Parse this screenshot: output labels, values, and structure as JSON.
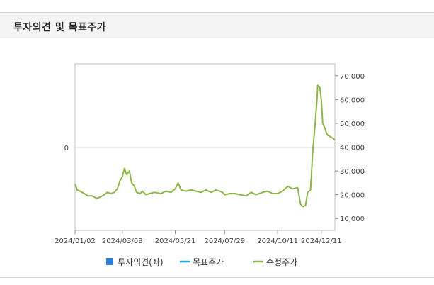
{
  "header": {
    "title": "투자의견 및 목표주가"
  },
  "chart_data": {
    "type": "line",
    "left_axis": {
      "ticks": [
        "0"
      ]
    },
    "right_axis": {
      "ticks": [
        "10,000",
        "20,000",
        "30,000",
        "40,000",
        "50,000",
        "60,000",
        "70,000"
      ],
      "ylim": [
        5000,
        75000
      ]
    },
    "x_ticks": [
      "2024/01/02",
      "2024/03/08",
      "2024/05/21",
      "2024/07/29",
      "2024/10/11",
      "2024/12/11"
    ],
    "x_tick_dates": [
      "2024-01-02",
      "2024-03-08",
      "2024-05-21",
      "2024-07-29",
      "2024-10-11",
      "2024-12-11"
    ],
    "xlim": [
      "2024-01-02",
      "2024-12-30"
    ],
    "legend": [
      {
        "label": "투자의견(좌)",
        "color": "#2f7fd8",
        "marker": "square"
      },
      {
        "label": "목표주가",
        "color": "#29a9e0",
        "marker": "line"
      },
      {
        "label": "수정주가",
        "color": "#8db548",
        "marker": "line"
      }
    ],
    "series": [
      {
        "color": "#8db548",
        "x": [
          "2024-01-02",
          "2024-01-05",
          "2024-01-09",
          "2024-01-15",
          "2024-01-20",
          "2024-01-26",
          "2024-02-01",
          "2024-02-06",
          "2024-02-12",
          "2024-02-16",
          "2024-02-21",
          "2024-02-26",
          "2024-03-01",
          "2024-03-05",
          "2024-03-08",
          "2024-03-11",
          "2024-03-14",
          "2024-03-18",
          "2024-03-21",
          "2024-03-25",
          "2024-03-28",
          "2024-04-02",
          "2024-04-05",
          "2024-04-10",
          "2024-04-15",
          "2024-04-22",
          "2024-05-01",
          "2024-05-08",
          "2024-05-15",
          "2024-05-21",
          "2024-05-25",
          "2024-05-29",
          "2024-06-05",
          "2024-06-12",
          "2024-06-19",
          "2024-06-26",
          "2024-07-03",
          "2024-07-10",
          "2024-07-17",
          "2024-07-22",
          "2024-07-26",
          "2024-07-29",
          "2024-08-05",
          "2024-08-12",
          "2024-08-20",
          "2024-08-28",
          "2024-09-04",
          "2024-09-11",
          "2024-09-20",
          "2024-09-27",
          "2024-10-04",
          "2024-10-11",
          "2024-10-18",
          "2024-10-25",
          "2024-11-01",
          "2024-11-08",
          "2024-11-12",
          "2024-11-15",
          "2024-11-19",
          "2024-11-22",
          "2024-11-26",
          "2024-11-29",
          "2024-12-03",
          "2024-12-05",
          "2024-12-06",
          "2024-12-09",
          "2024-12-11",
          "2024-12-13",
          "2024-12-16",
          "2024-12-18",
          "2024-12-20",
          "2024-12-23",
          "2024-12-26",
          "2024-12-30"
        ],
        "y": [
          24500,
          22000,
          21500,
          20500,
          19500,
          19500,
          18500,
          19000,
          20000,
          21000,
          20500,
          21000,
          22500,
          26000,
          27500,
          31000,
          28500,
          30000,
          25000,
          23500,
          21000,
          20500,
          21500,
          20000,
          20500,
          21000,
          20500,
          21500,
          21000,
          22500,
          25000,
          22000,
          21500,
          22000,
          21500,
          21000,
          22000,
          21000,
          22000,
          21500,
          21000,
          20000,
          20500,
          20500,
          20000,
          19500,
          21000,
          20000,
          21000,
          21500,
          20500,
          20500,
          21500,
          23500,
          22500,
          23000,
          16000,
          15000,
          15500,
          21000,
          22000,
          38000,
          52000,
          60000,
          66000,
          65000,
          60000,
          50000,
          48000,
          46000,
          45000,
          44500,
          44000,
          43000
        ]
      }
    ]
  }
}
